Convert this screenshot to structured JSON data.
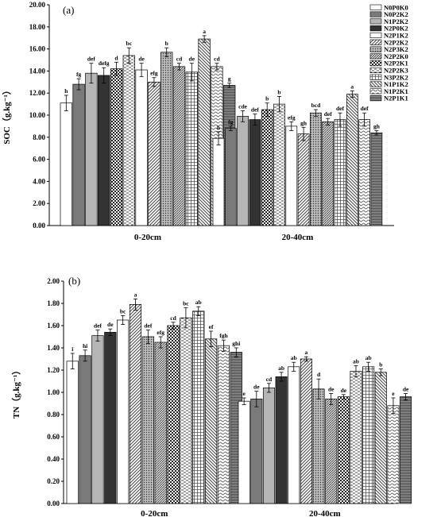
{
  "figure": {
    "legend_labels": [
      "N0P0K0",
      "N0P2K2",
      "N1P2K2",
      "N2P0K2",
      "N2P1K2",
      "N2P2K2",
      "N2P3K2",
      "N2P2K0",
      "N2P2K1",
      "N2P2K3",
      "N3P2K2",
      "N1P1K2",
      "N1P2K1",
      "N2P1K1"
    ]
  },
  "chart_data": [
    {
      "type": "bar",
      "panel_label": "(a)",
      "ylabel": "SOC（g.kg⁻¹）",
      "ylim": [
        0,
        20
      ],
      "yticks": [
        "0.00",
        "2.00",
        "4.00",
        "6.00",
        "8.00",
        "10.00",
        "12.00",
        "14.00",
        "16.00",
        "18.00",
        "20.00"
      ],
      "categories": [
        "0-20cm",
        "20-40cm"
      ],
      "bar_order": [
        "N0P0K0",
        "N0P2K2",
        "N1P2K2",
        "N2P0K2",
        "N2P2K1",
        "N2P2K3",
        "N2P1K2",
        "N2P2K2",
        "N2P3K2",
        "N2P2K0",
        "N3P2K2",
        "N1P1K2",
        "N1P2K1",
        "N2P1K1"
      ],
      "groups": [
        {
          "category": "0-20cm",
          "values": [
            11.1,
            12.8,
            13.8,
            13.6,
            14.2,
            15.4,
            14.1,
            13.0,
            15.7,
            14.4,
            13.9,
            16.9,
            14.4,
            12.7
          ],
          "errors": [
            0.7,
            0.5,
            0.9,
            0.7,
            0.6,
            0.7,
            0.6,
            0.4,
            0.4,
            0.3,
            0.8,
            0.3,
            0.3,
            0.2
          ],
          "letters": [
            "h",
            "fg",
            "def",
            "defg",
            "d",
            "bc",
            "de",
            "efg",
            "b",
            "cd",
            "de",
            "a",
            "cd",
            "g"
          ]
        },
        {
          "category": "20-40cm",
          "values": [
            7.9,
            8.8,
            9.9,
            9.6,
            10.5,
            11.0,
            9.0,
            8.3,
            10.2,
            9.4,
            9.6,
            11.9,
            9.6,
            8.4
          ],
          "errors": [
            0.6,
            0.2,
            0.5,
            0.5,
            0.6,
            0.7,
            0.4,
            0.6,
            0.3,
            0.3,
            0.6,
            0.3,
            0.6,
            0.2
          ],
          "letters": [
            "h",
            "fg",
            "cde",
            "def",
            "b",
            "b",
            "efg",
            "gh",
            "bcd",
            "def",
            "def",
            "a",
            "def",
            "gh"
          ]
        }
      ]
    },
    {
      "type": "bar",
      "panel_label": "(b)",
      "ylabel": "TN（g.kg⁻¹）",
      "ylim": [
        0,
        2
      ],
      "yticks": [
        "0.00",
        "0.20",
        "0.40",
        "0.60",
        "0.80",
        "1.00",
        "1.20",
        "1.40",
        "1.60",
        "1.80",
        "2.00"
      ],
      "categories": [
        "0-20cm",
        "20-40cm"
      ],
      "bar_order": [
        "N0P0K0",
        "N0P2K2",
        "N1P2K2",
        "N2P0K2",
        "N2P1K2",
        "N2P2K2",
        "N2P3K2",
        "N2P2K0",
        "N2P2K1",
        "N2P2K3",
        "N3P2K2",
        "N1P1K2",
        "N1P2K1",
        "N2P1K1"
      ],
      "groups": [
        {
          "category": "0-20cm",
          "values": [
            1.28,
            1.33,
            1.51,
            1.54,
            1.65,
            1.79,
            1.5,
            1.45,
            1.6,
            1.67,
            1.73,
            1.48,
            1.42,
            1.36
          ],
          "errors": [
            0.07,
            0.05,
            0.05,
            0.03,
            0.04,
            0.05,
            0.06,
            0.05,
            0.03,
            0.09,
            0.04,
            0.07,
            0.05,
            0.04
          ],
          "letters": [
            "i",
            "hi",
            "def",
            "de",
            "bc",
            "a",
            "def",
            "efg",
            "cd",
            "bc",
            "ab",
            "ef",
            "fgh",
            "ghi"
          ]
        },
        {
          "category": "20-40cm",
          "values": [
            0.92,
            0.94,
            1.04,
            1.14,
            1.23,
            1.3,
            1.03,
            0.94,
            0.96,
            1.19,
            1.23,
            1.18,
            0.88,
            0.96
          ],
          "errors": [
            0.03,
            0.07,
            0.04,
            0.04,
            0.04,
            0.02,
            0.09,
            0.05,
            0.02,
            0.05,
            0.04,
            0.03,
            0.07,
            0.03
          ],
          "letters": [
            "e",
            "de",
            "cd",
            "ab",
            "ab",
            "a",
            "d",
            "de",
            "de",
            "ab",
            "ab",
            "b",
            "e",
            "de"
          ]
        }
      ]
    }
  ]
}
